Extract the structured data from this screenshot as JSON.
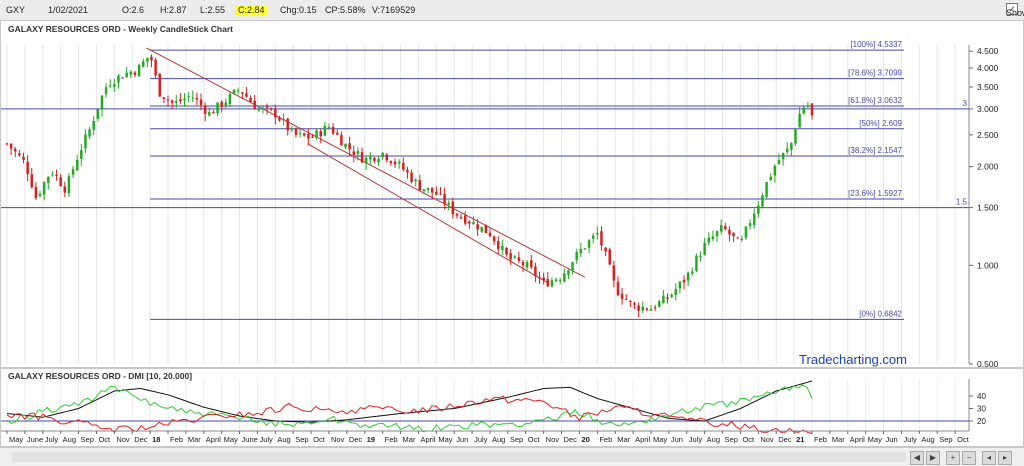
{
  "header": {
    "symbol": "GXY",
    "date": "1/02/2021",
    "open": "O:2.6",
    "high": "H:2.87",
    "low": "L:2.55",
    "close": "C:2.84",
    "change": "Chg:0.15",
    "change_pct": "CP:5.58%",
    "volume": "V:7169529",
    "show_last_label": "Show Last",
    "show_last_checked": true
  },
  "brand": "Tradecharting.com",
  "colors": {
    "up": "#22aa22",
    "down": "#d81f1f",
    "fib_line": "#4a4aa8",
    "trendline": "#b03a3a",
    "adx": "#111111",
    "plus_di": "#33cc33",
    "minus_di": "#dd2222"
  },
  "chart_data": [
    {
      "type": "candlestick",
      "title": "GALAXY RESOURCES ORD - Weekly CandleStick Chart",
      "yscale": "log",
      "ylim": [
        0.5,
        4.7
      ],
      "y_ticks": [
        0.5,
        1.0,
        1.5,
        2.0,
        2.5,
        3.0,
        3.5,
        4.0,
        4.5
      ],
      "y_tick_labels": [
        "0.500",
        "1.000",
        "1.500",
        "2.000",
        "2.500",
        "3.000",
        "3.500",
        "4.000",
        "4.500"
      ],
      "x_time_range": [
        "2017-05",
        "2021-11"
      ],
      "x_labels": [
        {
          "label": "May",
          "date": "2017-05"
        },
        {
          "label": "June",
          "date": "2017-06"
        },
        {
          "label": "July",
          "date": "2017-07"
        },
        {
          "label": "Aug",
          "date": "2017-08"
        },
        {
          "label": "Sep",
          "date": "2017-09"
        },
        {
          "label": "Oct",
          "date": "2017-10"
        },
        {
          "label": "Nov",
          "date": "2017-11"
        },
        {
          "label": "Dec",
          "date": "2017-12"
        },
        {
          "label": "18",
          "date": "2018-01",
          "bold": true
        },
        {
          "label": "Feb",
          "date": "2018-02"
        },
        {
          "label": "Mar",
          "date": "2018-03"
        },
        {
          "label": "April",
          "date": "2018-04"
        },
        {
          "label": "May",
          "date": "2018-05"
        },
        {
          "label": "June",
          "date": "2018-06"
        },
        {
          "label": "July",
          "date": "2018-07"
        },
        {
          "label": "Aug",
          "date": "2018-08"
        },
        {
          "label": "Sep",
          "date": "2018-09"
        },
        {
          "label": "Oct",
          "date": "2018-10"
        },
        {
          "label": "Nov",
          "date": "2018-11"
        },
        {
          "label": "Dec",
          "date": "2018-12"
        },
        {
          "label": "19",
          "date": "2019-01",
          "bold": true
        },
        {
          "label": "Feb",
          "date": "2019-02"
        },
        {
          "label": "Mar",
          "date": "2019-03"
        },
        {
          "label": "April",
          "date": "2019-04"
        },
        {
          "label": "May",
          "date": "2019-05"
        },
        {
          "label": "Jun",
          "date": "2019-06"
        },
        {
          "label": "July",
          "date": "2019-07"
        },
        {
          "label": "Aug",
          "date": "2019-08"
        },
        {
          "label": "Sep",
          "date": "2019-09"
        },
        {
          "label": "Oct",
          "date": "2019-10"
        },
        {
          "label": "Nov",
          "date": "2019-11"
        },
        {
          "label": "Dec",
          "date": "2019-12"
        },
        {
          "label": "20",
          "date": "2020-01",
          "bold": true
        },
        {
          "label": "Feb",
          "date": "2020-02"
        },
        {
          "label": "Mar",
          "date": "2020-03"
        },
        {
          "label": "April",
          "date": "2020-04"
        },
        {
          "label": "May",
          "date": "2020-05"
        },
        {
          "label": "Jun",
          "date": "2020-06"
        },
        {
          "label": "July",
          "date": "2020-07"
        },
        {
          "label": "Aug",
          "date": "2020-08"
        },
        {
          "label": "Sep",
          "date": "2020-09"
        },
        {
          "label": "Oct",
          "date": "2020-10"
        },
        {
          "label": "Nov",
          "date": "2020-11"
        },
        {
          "label": "Dec",
          "date": "2020-12"
        },
        {
          "label": "21",
          "date": "2021-01",
          "bold": true
        },
        {
          "label": "Feb",
          "date": "2021-02"
        },
        {
          "label": "Mar",
          "date": "2021-03"
        },
        {
          "label": "April",
          "date": "2021-04"
        },
        {
          "label": "May",
          "date": "2021-05"
        },
        {
          "label": "Jun",
          "date": "2021-06"
        },
        {
          "label": "July",
          "date": "2021-07"
        },
        {
          "label": "Aug",
          "date": "2021-08"
        },
        {
          "label": "Sep",
          "date": "2021-09"
        },
        {
          "label": "Oct",
          "date": "2021-10"
        }
      ],
      "price_path": [
        {
          "date": "2017-05-01",
          "price": 2.35
        },
        {
          "date": "2017-06-01",
          "price": 2.05
        },
        {
          "date": "2017-06-20",
          "price": 1.6
        },
        {
          "date": "2017-07-15",
          "price": 1.95
        },
        {
          "date": "2017-08-10",
          "price": 1.7
        },
        {
          "date": "2017-08-25",
          "price": 2.05
        },
        {
          "date": "2017-09-20",
          "price": 2.6
        },
        {
          "date": "2017-10-20",
          "price": 3.6
        },
        {
          "date": "2017-11-20",
          "price": 3.85
        },
        {
          "date": "2017-12-10",
          "price": 3.95
        },
        {
          "date": "2018-01-01",
          "price": 4.4
        },
        {
          "date": "2018-01-15",
          "price": 3.4
        },
        {
          "date": "2018-02-10",
          "price": 3.1
        },
        {
          "date": "2018-03-10",
          "price": 3.3
        },
        {
          "date": "2018-04-10",
          "price": 2.9
        },
        {
          "date": "2018-05-10",
          "price": 3.2
        },
        {
          "date": "2018-06-01",
          "price": 3.45
        },
        {
          "date": "2018-07-01",
          "price": 3.0
        },
        {
          "date": "2018-08-01",
          "price": 2.9
        },
        {
          "date": "2018-09-01",
          "price": 2.5
        },
        {
          "date": "2018-10-01",
          "price": 2.45
        },
        {
          "date": "2018-11-01",
          "price": 2.65
        },
        {
          "date": "2018-12-01",
          "price": 2.3
        },
        {
          "date": "2019-01-01",
          "price": 2.1
        },
        {
          "date": "2019-02-01",
          "price": 2.2
        },
        {
          "date": "2019-03-01",
          "price": 2.0
        },
        {
          "date": "2019-04-01",
          "price": 1.75
        },
        {
          "date": "2019-05-01",
          "price": 1.65
        },
        {
          "date": "2019-06-01",
          "price": 1.45
        },
        {
          "date": "2019-07-01",
          "price": 1.35
        },
        {
          "date": "2019-08-01",
          "price": 1.25
        },
        {
          "date": "2019-09-01",
          "price": 1.05
        },
        {
          "date": "2019-10-01",
          "price": 1.0
        },
        {
          "date": "2019-11-01",
          "price": 0.88
        },
        {
          "date": "2019-12-01",
          "price": 0.93
        },
        {
          "date": "2020-01-01",
          "price": 1.1
        },
        {
          "date": "2020-02-01",
          "price": 1.25
        },
        {
          "date": "2020-03-01",
          "price": 0.85
        },
        {
          "date": "2020-04-01",
          "price": 0.75
        },
        {
          "date": "2020-05-01",
          "price": 0.74
        },
        {
          "date": "2020-06-01",
          "price": 0.8
        },
        {
          "date": "2020-07-01",
          "price": 0.92
        },
        {
          "date": "2020-08-01",
          "price": 1.15
        },
        {
          "date": "2020-09-01",
          "price": 1.3
        },
        {
          "date": "2020-10-01",
          "price": 1.15
        },
        {
          "date": "2020-11-01",
          "price": 1.55
        },
        {
          "date": "2020-12-01",
          "price": 2.05
        },
        {
          "date": "2020-12-25",
          "price": 2.3
        },
        {
          "date": "2021-01-08",
          "price": 2.85
        },
        {
          "date": "2021-01-22",
          "price": 3.15
        },
        {
          "date": "2021-02-01",
          "price": 2.84
        }
      ],
      "fib_levels": [
        {
          "label": "[100%] 4.5337",
          "value": 4.5337
        },
        {
          "label": "[78.6%] 3.7099",
          "value": 3.7099
        },
        {
          "label": "[61.8%] 3.0632",
          "value": 3.0632
        },
        {
          "label": "[50%] 2.609",
          "value": 2.609
        },
        {
          "label": "[38.2%] 2.1547",
          "value": 2.1547
        },
        {
          "label": "[23.6%] 1.5927",
          "value": 1.5927
        },
        {
          "label": "[0%] 0.6842",
          "value": 0.6842
        }
      ],
      "fib_start_date": "2018-01-01",
      "fib_end_date": "2021-02-01",
      "horizontal_lines": [
        {
          "label": "3",
          "value": 3.0
        },
        {
          "label": "1.5",
          "value": 1.5
        }
      ],
      "trendlines": [
        {
          "from": {
            "date": "2017-12-25",
            "price": 4.6
          },
          "to": {
            "date": "2020-01-10",
            "price": 0.92
          }
        },
        {
          "from": {
            "date": "2018-09-25",
            "price": 2.35
          },
          "to": {
            "date": "2019-11-10",
            "price": 0.88
          }
        }
      ]
    },
    {
      "type": "line",
      "title": "GALAXY RESOURCES ORD - DMI [10, 20.000]",
      "ylim": [
        12,
        52
      ],
      "y_ticks": [
        20,
        30,
        40
      ],
      "y_tick_labels": [
        "20",
        "30",
        "40"
      ],
      "reference_lines": [
        20
      ],
      "series": [
        {
          "color_key": "adx",
          "points": [
            {
              "date": "2017-05-01",
              "value": 26
            },
            {
              "date": "2017-07-01",
              "value": 23
            },
            {
              "date": "2017-09-01",
              "value": 30
            },
            {
              "date": "2017-11-01",
              "value": 44
            },
            {
              "date": "2017-12-15",
              "value": 46
            },
            {
              "date": "2018-02-01",
              "value": 41
            },
            {
              "date": "2018-04-01",
              "value": 31
            },
            {
              "date": "2018-06-01",
              "value": 24
            },
            {
              "date": "2018-08-01",
              "value": 20
            },
            {
              "date": "2018-10-01",
              "value": 19
            },
            {
              "date": "2018-12-01",
              "value": 21
            },
            {
              "date": "2019-03-01",
              "value": 26
            },
            {
              "date": "2019-06-01",
              "value": 30
            },
            {
              "date": "2019-09-01",
              "value": 39
            },
            {
              "date": "2019-11-01",
              "value": 46
            },
            {
              "date": "2019-12-15",
              "value": 47
            },
            {
              "date": "2020-02-01",
              "value": 38
            },
            {
              "date": "2020-04-01",
              "value": 30
            },
            {
              "date": "2020-06-01",
              "value": 22
            },
            {
              "date": "2020-08-01",
              "value": 20
            },
            {
              "date": "2020-10-01",
              "value": 30
            },
            {
              "date": "2020-12-01",
              "value": 44
            },
            {
              "date": "2021-02-01",
              "value": 52
            }
          ]
        },
        {
          "color_key": "plus_di",
          "points": [
            {
              "date": "2017-05-01",
              "value": 18
            },
            {
              "date": "2017-07-01",
              "value": 28
            },
            {
              "date": "2017-09-01",
              "value": 34
            },
            {
              "date": "2017-11-01",
              "value": 46
            },
            {
              "date": "2018-01-01",
              "value": 35
            },
            {
              "date": "2018-03-01",
              "value": 27
            },
            {
              "date": "2018-05-01",
              "value": 24
            },
            {
              "date": "2018-07-01",
              "value": 20
            },
            {
              "date": "2018-09-01",
              "value": 17
            },
            {
              "date": "2018-11-01",
              "value": 22
            },
            {
              "date": "2019-01-01",
              "value": 17
            },
            {
              "date": "2019-04-01",
              "value": 14
            },
            {
              "date": "2019-07-01",
              "value": 16
            },
            {
              "date": "2019-10-01",
              "value": 18
            },
            {
              "date": "2020-01-01",
              "value": 27
            },
            {
              "date": "2020-03-01",
              "value": 16
            },
            {
              "date": "2020-06-01",
              "value": 25
            },
            {
              "date": "2020-08-01",
              "value": 32
            },
            {
              "date": "2020-10-01",
              "value": 35
            },
            {
              "date": "2020-12-01",
              "value": 43
            },
            {
              "date": "2021-01-15",
              "value": 50
            },
            {
              "date": "2021-02-01",
              "value": 38
            }
          ]
        },
        {
          "color_key": "minus_di",
          "points": [
            {
              "date": "2017-05-01",
              "value": 25
            },
            {
              "date": "2017-07-01",
              "value": 23
            },
            {
              "date": "2017-09-01",
              "value": 18
            },
            {
              "date": "2017-11-01",
              "value": 13
            },
            {
              "date": "2018-01-01",
              "value": 15
            },
            {
              "date": "2018-03-01",
              "value": 20
            },
            {
              "date": "2018-05-01",
              "value": 24
            },
            {
              "date": "2018-07-01",
              "value": 26
            },
            {
              "date": "2018-09-01",
              "value": 32
            },
            {
              "date": "2018-11-01",
              "value": 27
            },
            {
              "date": "2019-01-01",
              "value": 30
            },
            {
              "date": "2019-03-01",
              "value": 28
            },
            {
              "date": "2019-05-01",
              "value": 30
            },
            {
              "date": "2019-08-01",
              "value": 38
            },
            {
              "date": "2019-11-01",
              "value": 36
            },
            {
              "date": "2020-01-01",
              "value": 22
            },
            {
              "date": "2020-03-01",
              "value": 31
            },
            {
              "date": "2020-05-01",
              "value": 26
            },
            {
              "date": "2020-07-01",
              "value": 20
            },
            {
              "date": "2020-09-01",
              "value": 18
            },
            {
              "date": "2020-11-01",
              "value": 14
            },
            {
              "date": "2021-01-01",
              "value": 12
            },
            {
              "date": "2021-02-01",
              "value": 10
            }
          ]
        }
      ]
    }
  ]
}
